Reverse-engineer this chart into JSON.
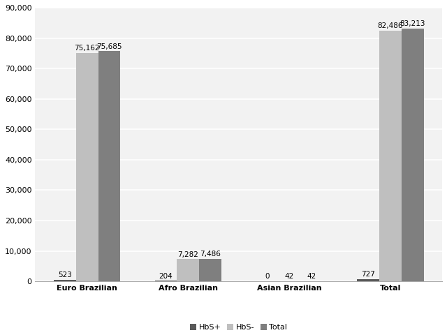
{
  "categories": [
    "Euro Brazilian",
    "Afro Brazilian",
    "Asian Brazilian",
    "Total"
  ],
  "series": {
    "HbS+": [
      523,
      204,
      0,
      727
    ],
    "HbS-": [
      75162,
      7282,
      42,
      82486
    ],
    "Total": [
      75685,
      7486,
      42,
      83213
    ]
  },
  "colors": {
    "HbS+": "#595959",
    "HbS-": "#bfbfbf",
    "Total": "#7f7f7f"
  },
  "ylim": [
    0,
    90000
  ],
  "yticks": [
    0,
    10000,
    20000,
    30000,
    40000,
    50000,
    60000,
    70000,
    80000,
    90000
  ],
  "bar_width": 0.22,
  "background_color": "#ffffff",
  "plot_bg_color": "#f2f2f2",
  "grid_color": "#ffffff",
  "label_fontsize": 7.5,
  "tick_fontsize": 8,
  "legend_fontsize": 8,
  "cat_label_fontsize": 8
}
